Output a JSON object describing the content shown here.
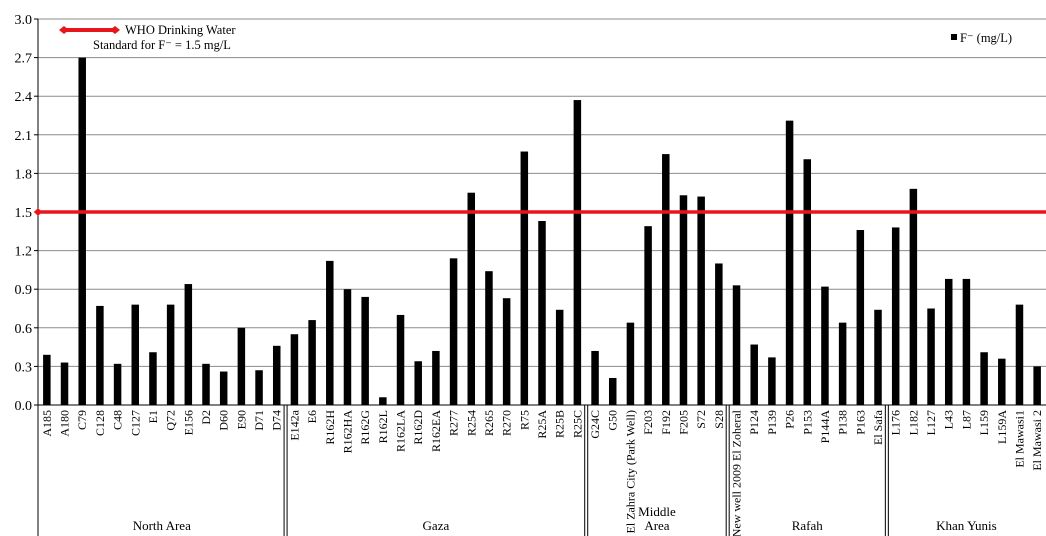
{
  "chart_data": {
    "type": "bar",
    "title": "",
    "xlabel": "",
    "ylabel": "",
    "ylim": [
      0,
      3.0
    ],
    "yticks": [
      "0.0",
      "0.3",
      "0.6",
      "0.9",
      "1.2",
      "1.5",
      "1.8",
      "2.1",
      "2.4",
      "2.7",
      "3.0"
    ],
    "grid": true,
    "legend_position": "top-right",
    "series": [
      {
        "name": "F⁻ (mg/L)",
        "color": "#000000",
        "values": [
          0.39,
          0.33,
          2.7,
          0.77,
          0.32,
          0.78,
          0.41,
          0.78,
          0.94,
          0.32,
          0.26,
          0.6,
          0.27,
          0.46,
          0.55,
          0.66,
          1.12,
          0.9,
          0.84,
          0.06,
          0.7,
          0.34,
          0.42,
          1.14,
          1.65,
          1.04,
          0.83,
          1.97,
          1.43,
          0.74,
          2.37,
          0.42,
          0.21,
          0.64,
          1.39,
          1.95,
          1.63,
          1.62,
          1.1,
          0.93,
          0.47,
          0.37,
          2.21,
          1.91,
          0.92,
          0.64,
          1.36,
          0.74,
          1.38,
          1.68,
          0.75,
          0.98,
          0.98,
          0.41,
          0.36,
          0.78,
          0.3
        ]
      }
    ],
    "categories": [
      "A185",
      "A180",
      "C79",
      "C128",
      "C48",
      "C127",
      "E1",
      "Q72",
      "E156",
      "D2",
      "D60",
      "E90",
      "D71",
      "D74",
      "E142a",
      "E6",
      "R162H",
      "R162HA",
      "R162G",
      "R162L",
      "R162LA",
      "R162D",
      "R162EA",
      "R277",
      "R254",
      "R265",
      "R270",
      "R75",
      "R25A",
      "R25B",
      "R25C",
      "G24C",
      "G50",
      "El Zahra City (Park Well)",
      "F203",
      "F192",
      "F205",
      "S72",
      "S28",
      "New well 2009 El Zoheral",
      "P124",
      "P139",
      "P26",
      "P153",
      "P144A",
      "P138",
      "P163",
      "El Safa",
      "L176",
      "L182",
      "L127",
      "L43",
      "L87",
      "L159",
      "L159A",
      "El Mawasi1",
      "El Mawasi 2"
    ],
    "groups": [
      {
        "name": "North Area",
        "count": 14
      },
      {
        "name": "Gaza",
        "count": 17
      },
      {
        "name": "Middle Area",
        "count": 8
      },
      {
        "name": "Rafah",
        "count": 9
      },
      {
        "name": "Khan Yunis",
        "count": 9
      }
    ],
    "reference_line": {
      "value": 1.5,
      "color": "#e8161b",
      "label_line1": "WHO Drinking Water",
      "label_line2": "Standard for F⁻ = 1.5 mg/L"
    }
  }
}
